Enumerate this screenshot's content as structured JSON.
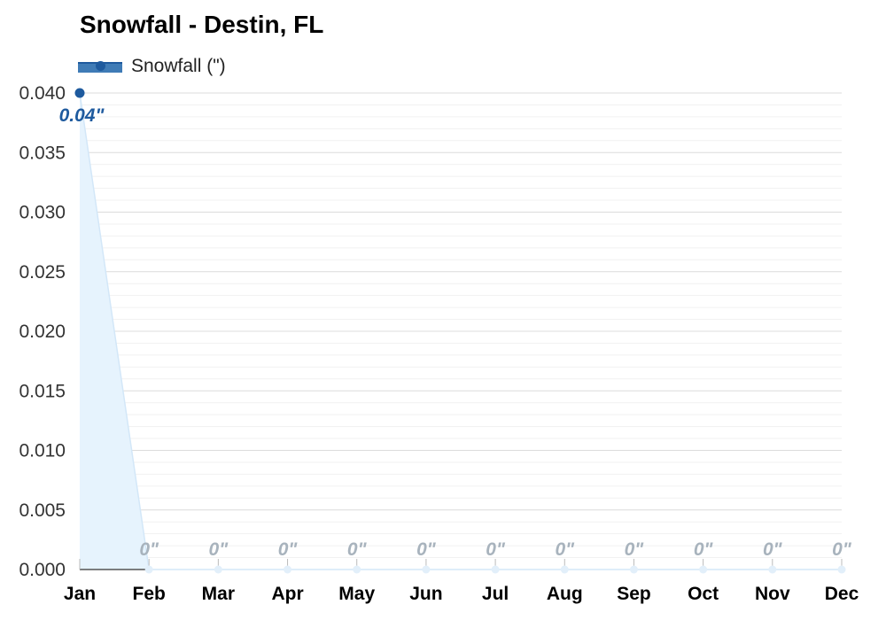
{
  "chart_data": {
    "type": "area",
    "title": "Snowfall - Destin, FL",
    "xlabel": "",
    "ylabel": "",
    "categories": [
      "Jan",
      "Feb",
      "Mar",
      "Apr",
      "May",
      "Jun",
      "Jul",
      "Aug",
      "Sep",
      "Oct",
      "Nov",
      "Dec"
    ],
    "series": [
      {
        "name": "Snowfall (\")",
        "values": [
          0.04,
          0,
          0,
          0,
          0,
          0,
          0,
          0,
          0,
          0,
          0,
          0
        ],
        "data_labels": [
          "0.04\"",
          "0\"",
          "0\"",
          "0\"",
          "0\"",
          "0\"",
          "0\"",
          "0\"",
          "0\"",
          "0\"",
          "0\"",
          "0\""
        ]
      }
    ],
    "ylim": [
      0,
      0.04
    ],
    "yticks": [
      "0.000",
      "0.005",
      "0.010",
      "0.015",
      "0.020",
      "0.025",
      "0.030",
      "0.035",
      "0.040"
    ],
    "grid": true,
    "legend": "top-left",
    "colors": {
      "line": "#1e5a9e",
      "fill": "#e6f3fd",
      "label_active": "#1e5a9e",
      "label_zero": "#a8b3bd"
    }
  }
}
